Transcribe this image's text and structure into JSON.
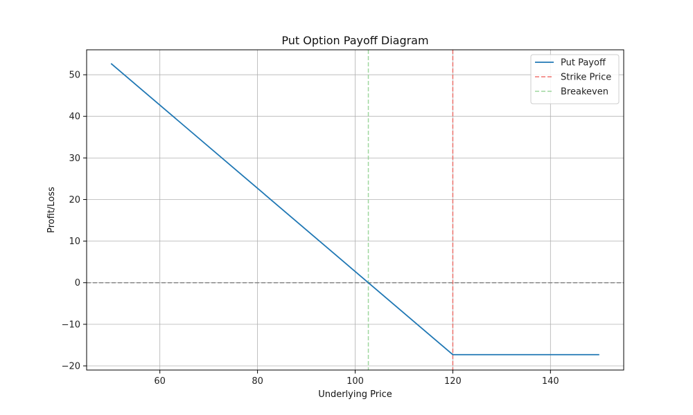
{
  "chart_data": {
    "type": "line",
    "title": "Put Option Payoff Diagram",
    "xlabel": "Underlying Price",
    "ylabel": "Profit/Loss",
    "xlim": [
      45,
      155
    ],
    "ylim": [
      -21,
      56
    ],
    "x_ticks": [
      60,
      80,
      100,
      120,
      140
    ],
    "x_tick_labels": [
      "60",
      "80",
      "100",
      "120",
      "140"
    ],
    "y_ticks": [
      -20,
      -10,
      0,
      10,
      20,
      30,
      40,
      50
    ],
    "y_tick_labels": [
      "−20",
      "−10",
      "0",
      "10",
      "20",
      "30",
      "40",
      "50"
    ],
    "grid": true,
    "legend_position": "top-right",
    "series": [
      {
        "name": "Put Payoff",
        "color": "#1f77b4",
        "style": "solid",
        "x": [
          50,
          120,
          150
        ],
        "y": [
          52.7,
          -17.3,
          -17.3
        ]
      }
    ],
    "reference_lines": [
      {
        "name": "Strike Price",
        "orientation": "vertical",
        "value": 120,
        "color": "#f0605a",
        "style": "dashed"
      },
      {
        "name": "Breakeven",
        "orientation": "vertical",
        "value": 102.7,
        "color": "#8fd18f",
        "style": "dashed"
      },
      {
        "orientation": "horizontal",
        "value": 0,
        "color": "#808080",
        "style": "dashed"
      }
    ]
  }
}
